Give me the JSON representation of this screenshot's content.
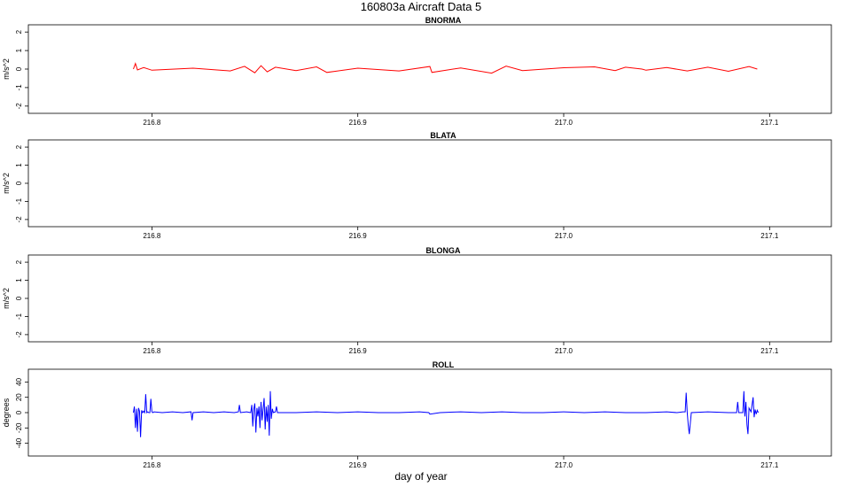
{
  "title": "160803a   Aircraft Data 5",
  "xlabel": "day of year",
  "chart_data": [
    {
      "type": "line",
      "title": "BNORMA",
      "xlabel": "",
      "ylabel": "m/s^2",
      "xlim": [
        216.74,
        217.13
      ],
      "ylim": [
        -2.2,
        2.2
      ],
      "xticks": [
        "216.8",
        "216.9",
        "217.0",
        "217.1"
      ],
      "yticks": [
        "-2",
        "-1",
        "0",
        "1",
        "2"
      ],
      "color": "#ff0000",
      "series": [
        {
          "x": [
            216.791,
            216.792,
            216.793,
            216.796,
            216.8,
            216.82,
            216.838,
            216.845,
            216.85,
            216.853,
            216.856,
            216.86,
            216.87,
            216.88,
            216.885,
            216.9,
            216.92,
            216.935,
            216.936,
            216.95,
            216.965,
            216.972,
            216.98,
            217.0,
            217.015,
            217.025,
            217.03,
            217.038,
            217.04,
            217.05,
            217.06,
            217.07,
            217.08,
            217.09,
            217.094
          ],
          "y": [
            0.0,
            0.3,
            -0.05,
            0.08,
            -0.06,
            0.05,
            -0.1,
            0.15,
            -0.2,
            0.18,
            -0.15,
            0.1,
            -0.08,
            0.12,
            -0.18,
            0.05,
            -0.1,
            0.14,
            -0.18,
            0.06,
            -0.22,
            0.16,
            -0.08,
            0.07,
            0.12,
            -0.08,
            0.1,
            0.0,
            -0.06,
            0.08,
            -0.1,
            0.1,
            -0.12,
            0.14,
            0.0
          ]
        }
      ]
    },
    {
      "type": "line",
      "title": "BLATA",
      "xlabel": "",
      "ylabel": "m/s^2",
      "xlim": [
        216.74,
        217.13
      ],
      "ylim": [
        -2.2,
        2.2
      ],
      "xticks": [
        "216.8",
        "216.9",
        "217.0",
        "217.1"
      ],
      "yticks": [
        "-2",
        "-1",
        "0",
        "1",
        "2"
      ],
      "color": "#ff0000",
      "series": []
    },
    {
      "type": "line",
      "title": "BLONGA",
      "xlabel": "",
      "ylabel": "m/s^2",
      "xlim": [
        216.74,
        217.13
      ],
      "ylim": [
        -2.2,
        2.2
      ],
      "xticks": [
        "216.8",
        "216.9",
        "217.0",
        "217.1"
      ],
      "yticks": [
        "-2",
        "-1",
        "0",
        "1",
        "2"
      ],
      "color": "#ff0000",
      "series": []
    },
    {
      "type": "line",
      "title": "ROLL",
      "xlabel": "day of year",
      "ylabel": "degrees",
      "xlim": [
        216.74,
        217.13
      ],
      "ylim": [
        -52,
        52
      ],
      "xticks": [
        "216.8",
        "216.9",
        "217.0",
        "217.1"
      ],
      "yticks": [
        "-40",
        "-20",
        "0",
        "20",
        "40"
      ],
      "color": "#0000ff",
      "series": [
        {
          "x": [
            216.791,
            216.7915,
            216.792,
            216.7925,
            216.793,
            216.7935,
            216.794,
            216.7945,
            216.795,
            216.7955,
            216.796,
            216.7965,
            216.797,
            216.7975,
            216.798,
            216.7985,
            216.799,
            216.7995,
            216.8,
            216.8005,
            216.801,
            216.805,
            216.81,
            216.815,
            216.819,
            216.8195,
            216.82,
            216.825,
            216.83,
            216.835,
            216.84,
            216.842,
            216.8425,
            216.843,
            216.846,
            216.848,
            216.8485,
            216.849,
            216.8495,
            216.85,
            216.8505,
            216.851,
            216.8515,
            216.852,
            216.8525,
            216.853,
            216.8535,
            216.854,
            216.8545,
            216.855,
            216.8555,
            216.856,
            216.8565,
            216.857,
            216.8575,
            216.858,
            216.8585,
            216.859,
            216.86,
            216.8605,
            216.861,
            216.87,
            216.88,
            216.89,
            216.9,
            216.91,
            216.92,
            216.93,
            216.9345,
            216.935,
            216.94,
            216.95,
            216.96,
            216.97,
            216.98,
            216.99,
            217.0,
            217.01,
            217.02,
            217.03,
            217.04,
            217.05,
            217.055,
            217.058,
            217.059,
            217.0595,
            217.06,
            217.0605,
            217.061,
            217.062,
            217.07,
            217.08,
            217.084,
            217.0845,
            217.085,
            217.087,
            217.0875,
            217.088,
            217.0885,
            217.089,
            217.0895,
            217.09,
            217.091,
            217.092,
            217.0925,
            217.093,
            217.0935,
            217.094,
            217.0945
          ],
          "y": [
            0,
            8,
            -20,
            5,
            -25,
            6,
            2,
            -32,
            3,
            0,
            2,
            0,
            24,
            0,
            1,
            0,
            0,
            18,
            1,
            0,
            1,
            0,
            1,
            0,
            1,
            -10,
            0,
            1,
            0,
            1,
            0,
            1,
            10,
            0,
            1,
            0,
            10,
            -18,
            5,
            12,
            -26,
            6,
            -5,
            8,
            -20,
            14,
            -10,
            4,
            19,
            -22,
            8,
            -12,
            10,
            -30,
            28,
            -8,
            5,
            0,
            1,
            8,
            0,
            0,
            1,
            0,
            1,
            0,
            0,
            1,
            0,
            -2,
            0,
            1,
            0,
            1,
            0,
            0,
            1,
            0,
            1,
            0,
            0,
            1,
            0,
            1,
            1,
            26,
            0,
            -16,
            -28,
            0,
            1,
            0,
            0,
            14,
            0,
            0,
            28,
            -5,
            14,
            -16,
            -28,
            6,
            1,
            20,
            -6,
            4,
            -2,
            3,
            0
          ]
        }
      ]
    }
  ]
}
